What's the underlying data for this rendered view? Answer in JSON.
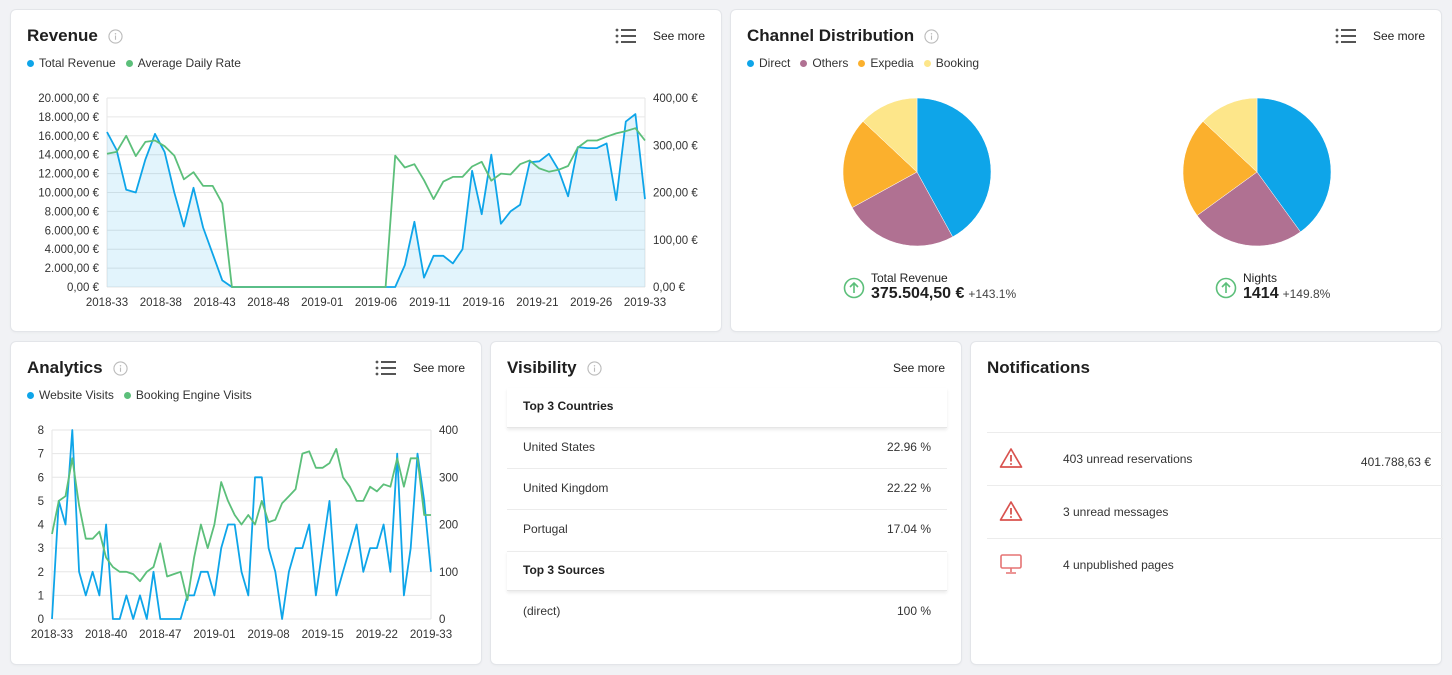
{
  "revenue": {
    "title": "Revenue",
    "see_more": "See more",
    "legend": [
      {
        "label": "Total Revenue",
        "color": "#0ea5e9"
      },
      {
        "label": "Average Daily Rate",
        "color": "#5cbf7a"
      }
    ]
  },
  "channel": {
    "title": "Channel Distribution",
    "see_more": "See more",
    "legend": [
      {
        "label": "Direct",
        "color": "#0ea5e9"
      },
      {
        "label": "Others",
        "color": "#b07192"
      },
      {
        "label": "Expedia",
        "color": "#fbb02d"
      },
      {
        "label": "Booking",
        "color": "#fde68a"
      }
    ],
    "kpis": [
      {
        "label": "Total Revenue",
        "value": "375.504,50 €",
        "change": "+143.1%"
      },
      {
        "label": "Nights",
        "value": "1414",
        "change": "+149.8%"
      }
    ]
  },
  "analytics": {
    "title": "Analytics",
    "see_more": "See more",
    "legend": [
      {
        "label": "Website Visits",
        "color": "#0ea5e9"
      },
      {
        "label": "Booking Engine Visits",
        "color": "#5cbf7a"
      }
    ]
  },
  "visibility": {
    "title": "Visibility",
    "see_more": "See more",
    "countries_header": "Top 3 Countries",
    "countries": [
      {
        "name": "United States",
        "value": "22.96 %"
      },
      {
        "name": "United Kingdom",
        "value": "22.22 %"
      },
      {
        "name": "Portugal",
        "value": "17.04 %"
      }
    ],
    "sources_header": "Top 3 Sources",
    "sources": [
      {
        "name": "(direct)",
        "value": "100 %"
      }
    ]
  },
  "notifications": {
    "title": "Notifications",
    "items": [
      {
        "text": "403 unread reservations",
        "value": "401.788,63 €",
        "icon": "warning-icon"
      },
      {
        "text": "3 unread messages",
        "value": "",
        "icon": "warning-icon"
      },
      {
        "text": "4 unpublished pages",
        "value": "",
        "icon": "monitor-icon"
      }
    ]
  },
  "chart_data": [
    {
      "type": "line",
      "title": "Revenue",
      "x_ticks": [
        "2018-33",
        "2018-38",
        "2018-43",
        "2018-48",
        "2019-01",
        "2019-06",
        "2019-11",
        "2019-16",
        "2019-21",
        "2019-26",
        "2019-33"
      ],
      "y_left_ticks": [
        "0,00 €",
        "2.000,00 €",
        "4.000,00 €",
        "6.000,00 €",
        "8.000,00 €",
        "10.000,00 €",
        "12.000,00 €",
        "14.000,00 €",
        "16.000,00 €",
        "18.000,00 €",
        "20.000,00 €"
      ],
      "y_right_ticks": [
        "0,00 €",
        "100,00 €",
        "200,00 €",
        "300,00 €",
        "400,00 €"
      ],
      "ylim_left": [
        0,
        20000
      ],
      "ylim_right": [
        0,
        400
      ],
      "series": [
        {
          "name": "Total Revenue",
          "axis": "left",
          "area": true,
          "color": "#0ea5e9",
          "values": [
            16400,
            14500,
            10300,
            10000,
            13500,
            16200,
            14300,
            10000,
            6400,
            10500,
            6300,
            3500,
            700,
            0,
            0,
            0,
            0,
            0,
            0,
            0,
            0,
            0,
            0,
            0,
            0,
            0,
            0,
            0,
            0,
            0,
            0,
            2300,
            6900,
            1000,
            3300,
            3300,
            2500,
            4000,
            12300,
            7700,
            14000,
            6700,
            8000,
            8700,
            13200,
            13300,
            14100,
            12400,
            9600,
            14800,
            14700,
            14700,
            15200,
            9200,
            17500,
            18300,
            9300
          ]
        },
        {
          "name": "Average Daily Rate",
          "axis": "right",
          "area": false,
          "color": "#5cbf7a",
          "values": [
            282,
            286,
            320,
            277,
            307,
            310,
            298,
            278,
            228,
            243,
            214,
            214,
            177,
            0,
            0,
            0,
            0,
            0,
            0,
            0,
            0,
            0,
            0,
            0,
            0,
            0,
            0,
            0,
            0,
            0,
            278,
            253,
            260,
            226,
            186,
            223,
            233,
            233,
            255,
            265,
            225,
            240,
            238,
            260,
            268,
            251,
            244,
            248,
            256,
            295,
            310,
            310,
            318,
            325,
            330,
            336,
            310
          ]
        }
      ]
    },
    {
      "type": "pie",
      "labels": [
        "Direct",
        "Others",
        "Expedia",
        "Booking"
      ],
      "values": [
        42,
        25,
        20,
        13
      ]
    },
    {
      "type": "pie",
      "labels": [
        "Direct",
        "Others",
        "Expedia",
        "Booking"
      ],
      "values": [
        40,
        25,
        22,
        13
      ]
    },
    {
      "type": "line",
      "title": "Analytics",
      "x_ticks": [
        "2018-33",
        "2018-40",
        "2018-47",
        "2019-01",
        "2019-08",
        "2019-15",
        "2019-22",
        "2019-33"
      ],
      "y_left_ticks": [
        "0",
        "1",
        "2",
        "3",
        "4",
        "5",
        "6",
        "7",
        "8"
      ],
      "y_right_ticks": [
        "0",
        "100",
        "200",
        "300",
        "400"
      ],
      "ylim_left": [
        0,
        8
      ],
      "ylim_right": [
        0,
        400
      ],
      "series": [
        {
          "name": "Website Visits",
          "axis": "left",
          "color": "#0ea5e9",
          "values": [
            0,
            5,
            4,
            8,
            2,
            1,
            2,
            1,
            4,
            0,
            0,
            1,
            0,
            1,
            0,
            2,
            0,
            0,
            0,
            0,
            1,
            1,
            2,
            2,
            1,
            3,
            4,
            4,
            2,
            1,
            6,
            6,
            3,
            2,
            0,
            2,
            3,
            3,
            4,
            1,
            3,
            5,
            1,
            2,
            3,
            4,
            2,
            3,
            3,
            4,
            2,
            7,
            1,
            3,
            7,
            5,
            2
          ]
        },
        {
          "name": "Booking Engine Visits",
          "axis": "right",
          "color": "#5cbf7a",
          "values": [
            180,
            250,
            260,
            340,
            240,
            170,
            170,
            185,
            130,
            110,
            100,
            100,
            95,
            80,
            100,
            110,
            160,
            90,
            95,
            100,
            40,
            130,
            200,
            150,
            200,
            290,
            250,
            220,
            200,
            220,
            200,
            250,
            205,
            210,
            245,
            260,
            275,
            350,
            355,
            320,
            320,
            330,
            360,
            300,
            280,
            250,
            250,
            280,
            270,
            285,
            280,
            340,
            280,
            340,
            340,
            220,
            220
          ]
        }
      ]
    }
  ]
}
